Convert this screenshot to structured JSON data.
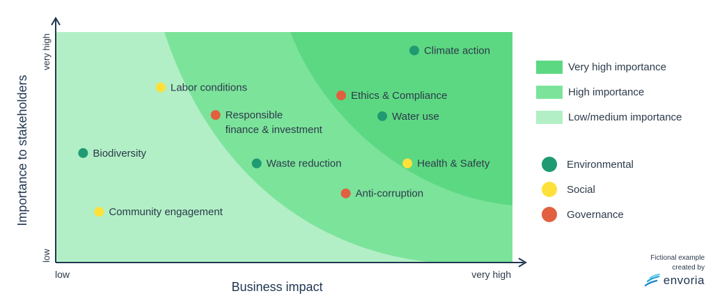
{
  "chart_data": {
    "type": "scatter",
    "xlabel": "Business impact",
    "ylabel": "Importance to stakeholders",
    "x_tick_labels": {
      "low": "low",
      "high": "very high"
    },
    "y_tick_labels": {
      "low": "low",
      "high": "very high"
    },
    "xlim": [
      0,
      100
    ],
    "ylim": [
      0,
      100
    ],
    "zones": [
      {
        "name": "Very high importance",
        "color": "#5dd882"
      },
      {
        "name": "High importance",
        "color": "#7ce39b"
      },
      {
        "name": "Low/medium importance",
        "color": "#b2efc6"
      }
    ],
    "categories": [
      {
        "name": "Environmental",
        "color": "#1f9a72"
      },
      {
        "name": "Social",
        "color": "#fde13a"
      },
      {
        "name": "Governance",
        "color": "#e0603f"
      }
    ],
    "points": [
      {
        "label": "Climate action",
        "category": "Environmental",
        "x": 78.5,
        "y": 92
      },
      {
        "label": "Labor conditions",
        "category": "Social",
        "x": 23,
        "y": 76
      },
      {
        "label": "Ethics & Compliance",
        "category": "Governance",
        "x": 62.5,
        "y": 72.5
      },
      {
        "label": "Responsible",
        "label2": "finance & investment",
        "category": "Governance",
        "x": 35,
        "y": 64
      },
      {
        "label": "Water use",
        "category": "Environmental",
        "x": 71.5,
        "y": 63.5
      },
      {
        "label": "Biodiversity",
        "category": "Environmental",
        "x": 6,
        "y": 47.5
      },
      {
        "label": "Waste reduction",
        "category": "Environmental",
        "x": 44,
        "y": 43
      },
      {
        "label": "Health & Safety",
        "category": "Social",
        "x": 77,
        "y": 43
      },
      {
        "label": "Anti-corruption",
        "category": "Governance",
        "x": 63.5,
        "y": 30
      },
      {
        "label": "Community engagement",
        "category": "Social",
        "x": 9.5,
        "y": 22
      }
    ]
  },
  "credit": {
    "line1": "Fictional example",
    "line2": "created by",
    "brand": "envoria"
  }
}
